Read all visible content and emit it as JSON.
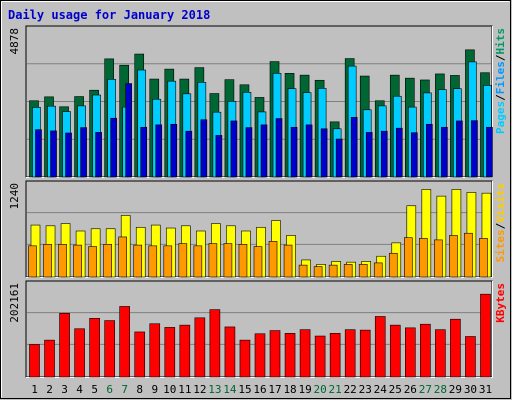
{
  "chart_data": {
    "type": "bar",
    "title": "Daily usage for January 2018",
    "categories": [
      "1",
      "2",
      "3",
      "4",
      "5",
      "6",
      "7",
      "8",
      "9",
      "10",
      "11",
      "12",
      "13",
      "14",
      "15",
      "16",
      "17",
      "18",
      "19",
      "20",
      "21",
      "22",
      "23",
      "24",
      "25",
      "26",
      "27",
      "28",
      "29",
      "30",
      "31"
    ],
    "weekend_days": [
      "6",
      "7",
      "13",
      "14",
      "20",
      "21",
      "27",
      "28"
    ],
    "panels": [
      {
        "id": "pages-files-hits",
        "ymax_label": "4878",
        "ymax": 4878,
        "grid": true,
        "legend": [
          "Pages",
          "Files",
          "Hits"
        ],
        "series": [
          {
            "name": "Hits",
            "color": "#006633",
            "values": [
              2530,
              2660,
              2330,
              2670,
              2880,
              3920,
              3710,
              4080,
              3250,
              3580,
              3250,
              3630,
              2770,
              3230,
              3060,
              2640,
              3830,
              3440,
              3380,
              3210,
              1830,
              3930,
              3350,
              2530,
              3380,
              3280,
              3220,
              3420,
              3370,
              4220,
              3460
            ]
          },
          {
            "name": "Files",
            "color": "#00ccff",
            "values": [
              2310,
              2350,
              2170,
              2360,
              2720,
              3240,
              2320,
              3550,
              2580,
              3180,
              2760,
              3140,
              2150,
              2510,
              2810,
              2160,
              3440,
              2930,
              2800,
              2940,
              1600,
              3680,
              2230,
              2360,
              2680,
              2320,
              2790,
              2900,
              2930,
              3820,
              3040
            ]
          },
          {
            "name": "Pages",
            "color": "#0000cc",
            "values": [
              1570,
              1530,
              1460,
              1640,
              1480,
              1950,
              3100,
              1650,
              1730,
              1750,
              1520,
              1900,
              1380,
              1860,
              1640,
              1730,
              1940,
              1650,
              1730,
              1600,
              1260,
              1980,
              1480,
              1520,
              1620,
              1470,
              1750,
              1650,
              1860,
              1870,
              1650
            ]
          }
        ]
      },
      {
        "id": "visits-sites",
        "ymax_label": "1240",
        "ymax": 1240,
        "grid": true,
        "legend": [
          "Sites",
          "Visits"
        ],
        "series": [
          {
            "name": "Visits",
            "color": "#ffff00",
            "values": [
              700,
              690,
              720,
              620,
              650,
              650,
              830,
              670,
              700,
              660,
              690,
              620,
              720,
              690,
              620,
              670,
              760,
              560,
              230,
              170,
              210,
              200,
              210,
              280,
              460,
              960,
              1180,
              1090,
              1180,
              1140,
              1130
            ]
          },
          {
            "name": "Sites",
            "color": "#ff9900",
            "values": [
              420,
              440,
              440,
              430,
              410,
              440,
              540,
              430,
              420,
              420,
              450,
              420,
              450,
              450,
              440,
              410,
              480,
              430,
              160,
              140,
              160,
              170,
              170,
              190,
              320,
              530,
              520,
              500,
              560,
              590,
              520
            ]
          }
        ]
      },
      {
        "id": "kbytes",
        "ymax_label": "202161",
        "ymax": 202161,
        "grid": true,
        "legend": [
          "KBytes"
        ],
        "series": [
          {
            "name": "KBytes",
            "color": "#ff0000",
            "values": [
              71500,
              81000,
              140000,
              106000,
              129000,
              124000,
              155000,
              99000,
              117000,
              109000,
              114000,
              130000,
              148000,
              110000,
              81000,
              95000,
              102000,
              96000,
              104000,
              90000,
              96000,
              104000,
              103000,
              133000,
              114000,
              108000,
              116000,
              104000,
              127000,
              89000,
              182000
            ]
          }
        ]
      }
    ]
  }
}
